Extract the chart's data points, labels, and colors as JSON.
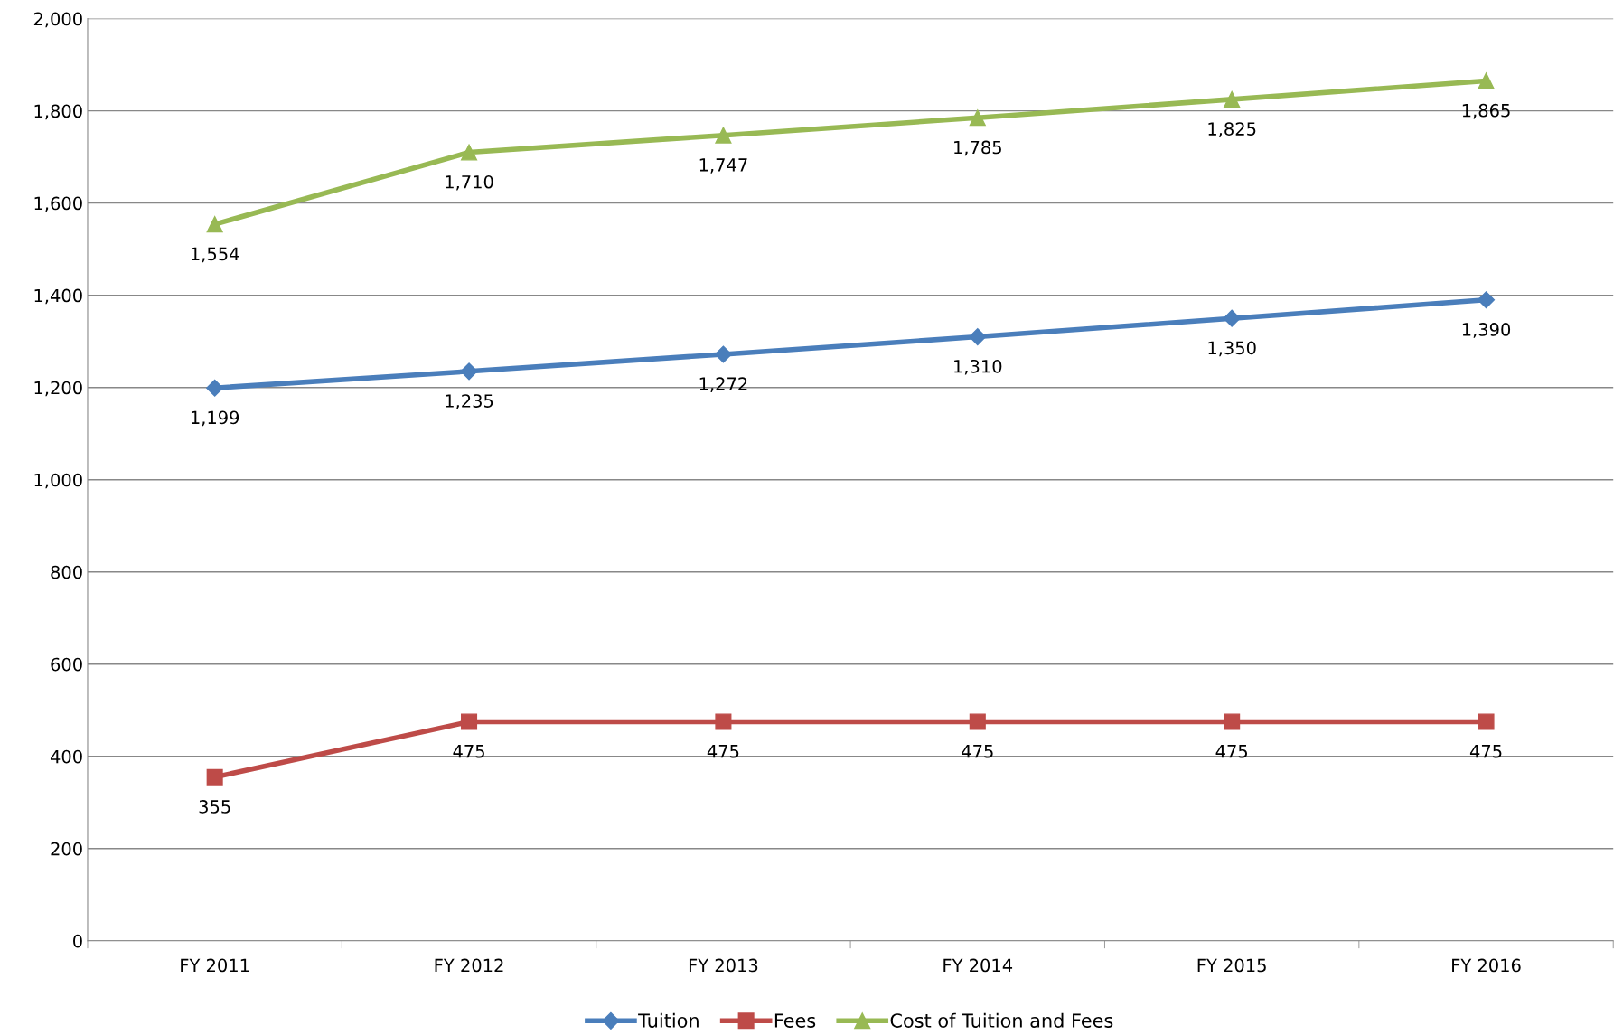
{
  "chart_data": {
    "type": "line",
    "categories": [
      "FY 2011",
      "FY 2012",
      "FY 2013",
      "FY 2014",
      "FY 2015",
      "FY 2016"
    ],
    "series": [
      {
        "name": "Tuition",
        "color": "#4a7ebb",
        "marker": "diamond",
        "values": [
          1199,
          1235,
          1272,
          1310,
          1350,
          1390
        ],
        "value_labels": [
          "1,199",
          "1,235",
          "1,272",
          "1,310",
          "1,350",
          "1,390"
        ]
      },
      {
        "name": "Fees",
        "color": "#be4b48",
        "marker": "square",
        "values": [
          355,
          475,
          475,
          475,
          475,
          475
        ],
        "value_labels": [
          "355",
          "475",
          "475",
          "475",
          "475",
          "475"
        ]
      },
      {
        "name": "Cost of Tuition and Fees",
        "color": "#98b954",
        "marker": "triangle",
        "values": [
          1554,
          1710,
          1747,
          1785,
          1825,
          1865
        ],
        "value_labels": [
          "1,554",
          "1,710",
          "1,747",
          "1,785",
          "1,825",
          "1,865"
        ]
      }
    ],
    "ylim": [
      0,
      2000
    ],
    "yticks": [
      {
        "value": 0,
        "label": "0"
      },
      {
        "value": 200,
        "label": "200"
      },
      {
        "value": 400,
        "label": "400"
      },
      {
        "value": 600,
        "label": "600"
      },
      {
        "value": 800,
        "label": "800"
      },
      {
        "value": 1000,
        "label": "1,000"
      },
      {
        "value": 1200,
        "label": "1,200"
      },
      {
        "value": 1400,
        "label": "1,400"
      },
      {
        "value": 1600,
        "label": "1,600"
      },
      {
        "value": 1800,
        "label": "1,800"
      },
      {
        "value": 2000,
        "label": "2,000"
      }
    ],
    "grid": "y",
    "legend": "bottom",
    "line_style": "solid"
  }
}
